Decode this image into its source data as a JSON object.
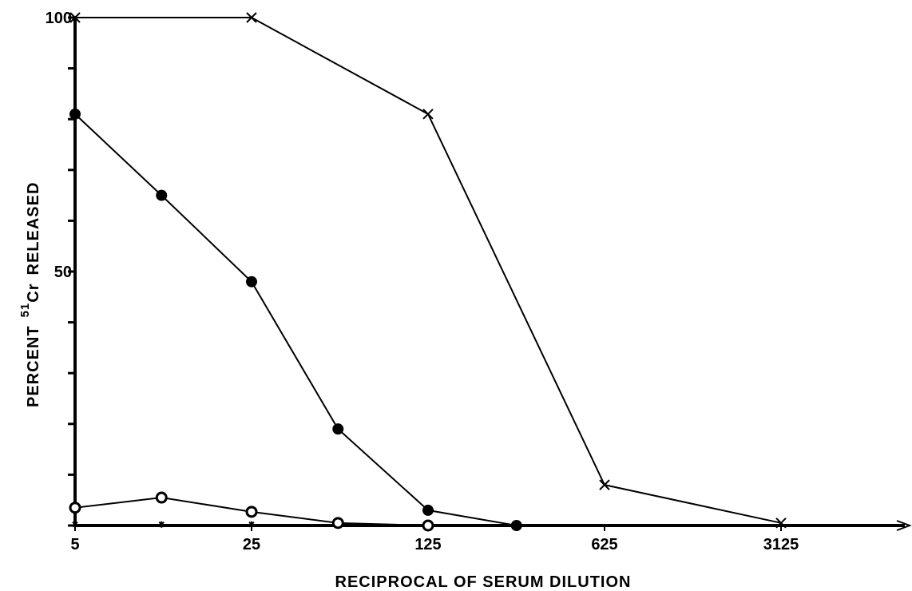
{
  "chart_data": {
    "type": "line",
    "title": "",
    "xlabel": "RECIPROCAL OF SERUM DILUTION",
    "ylabel_main": "PERCENT",
    "ylabel_superscript": "51",
    "ylabel_isotope": "Cr",
    "ylabel_tail": "RELEASED",
    "x_scale": "log",
    "xlim": [
      5,
      15625
    ],
    "ylim": [
      0,
      100
    ],
    "x_ticks": [
      {
        "value": 5,
        "label": "5"
      },
      {
        "value": 25,
        "label": "25"
      },
      {
        "value": 125,
        "label": "125"
      },
      {
        "value": 625,
        "label": "625"
      },
      {
        "value": 3125,
        "label": "3125"
      }
    ],
    "y_ticks": [
      {
        "value": 0,
        "label": ""
      },
      {
        "value": 10,
        "label": ""
      },
      {
        "value": 20,
        "label": ""
      },
      {
        "value": 30,
        "label": ""
      },
      {
        "value": 40,
        "label": ""
      },
      {
        "value": 50,
        "label": "50"
      },
      {
        "value": 60,
        "label": ""
      },
      {
        "value": 70,
        "label": ""
      },
      {
        "value": 80,
        "label": ""
      },
      {
        "value": 90,
        "label": ""
      },
      {
        "value": 100,
        "label": "100"
      }
    ],
    "grid": false,
    "series": [
      {
        "marker": "x",
        "connected": true,
        "points": [
          [
            5,
            100
          ],
          [
            25,
            100
          ],
          [
            125,
            81
          ],
          [
            625,
            8
          ],
          [
            3125,
            0.5
          ]
        ]
      },
      {
        "marker": "filled-circle",
        "connected": true,
        "points": [
          [
            5,
            81
          ],
          [
            11,
            65
          ],
          [
            25,
            48
          ],
          [
            55,
            19
          ],
          [
            125,
            3
          ],
          [
            280,
            0
          ]
        ]
      },
      {
        "marker": "open-circle",
        "connected": true,
        "points": [
          [
            5,
            3.5
          ],
          [
            11,
            5.5
          ],
          [
            25,
            2.7
          ],
          [
            55,
            0.5
          ],
          [
            125,
            0
          ]
        ]
      },
      {
        "marker": "small-star",
        "connected": false,
        "points": [
          [
            5,
            0.2
          ],
          [
            11,
            0.2
          ],
          [
            25,
            0.2
          ]
        ]
      }
    ]
  }
}
